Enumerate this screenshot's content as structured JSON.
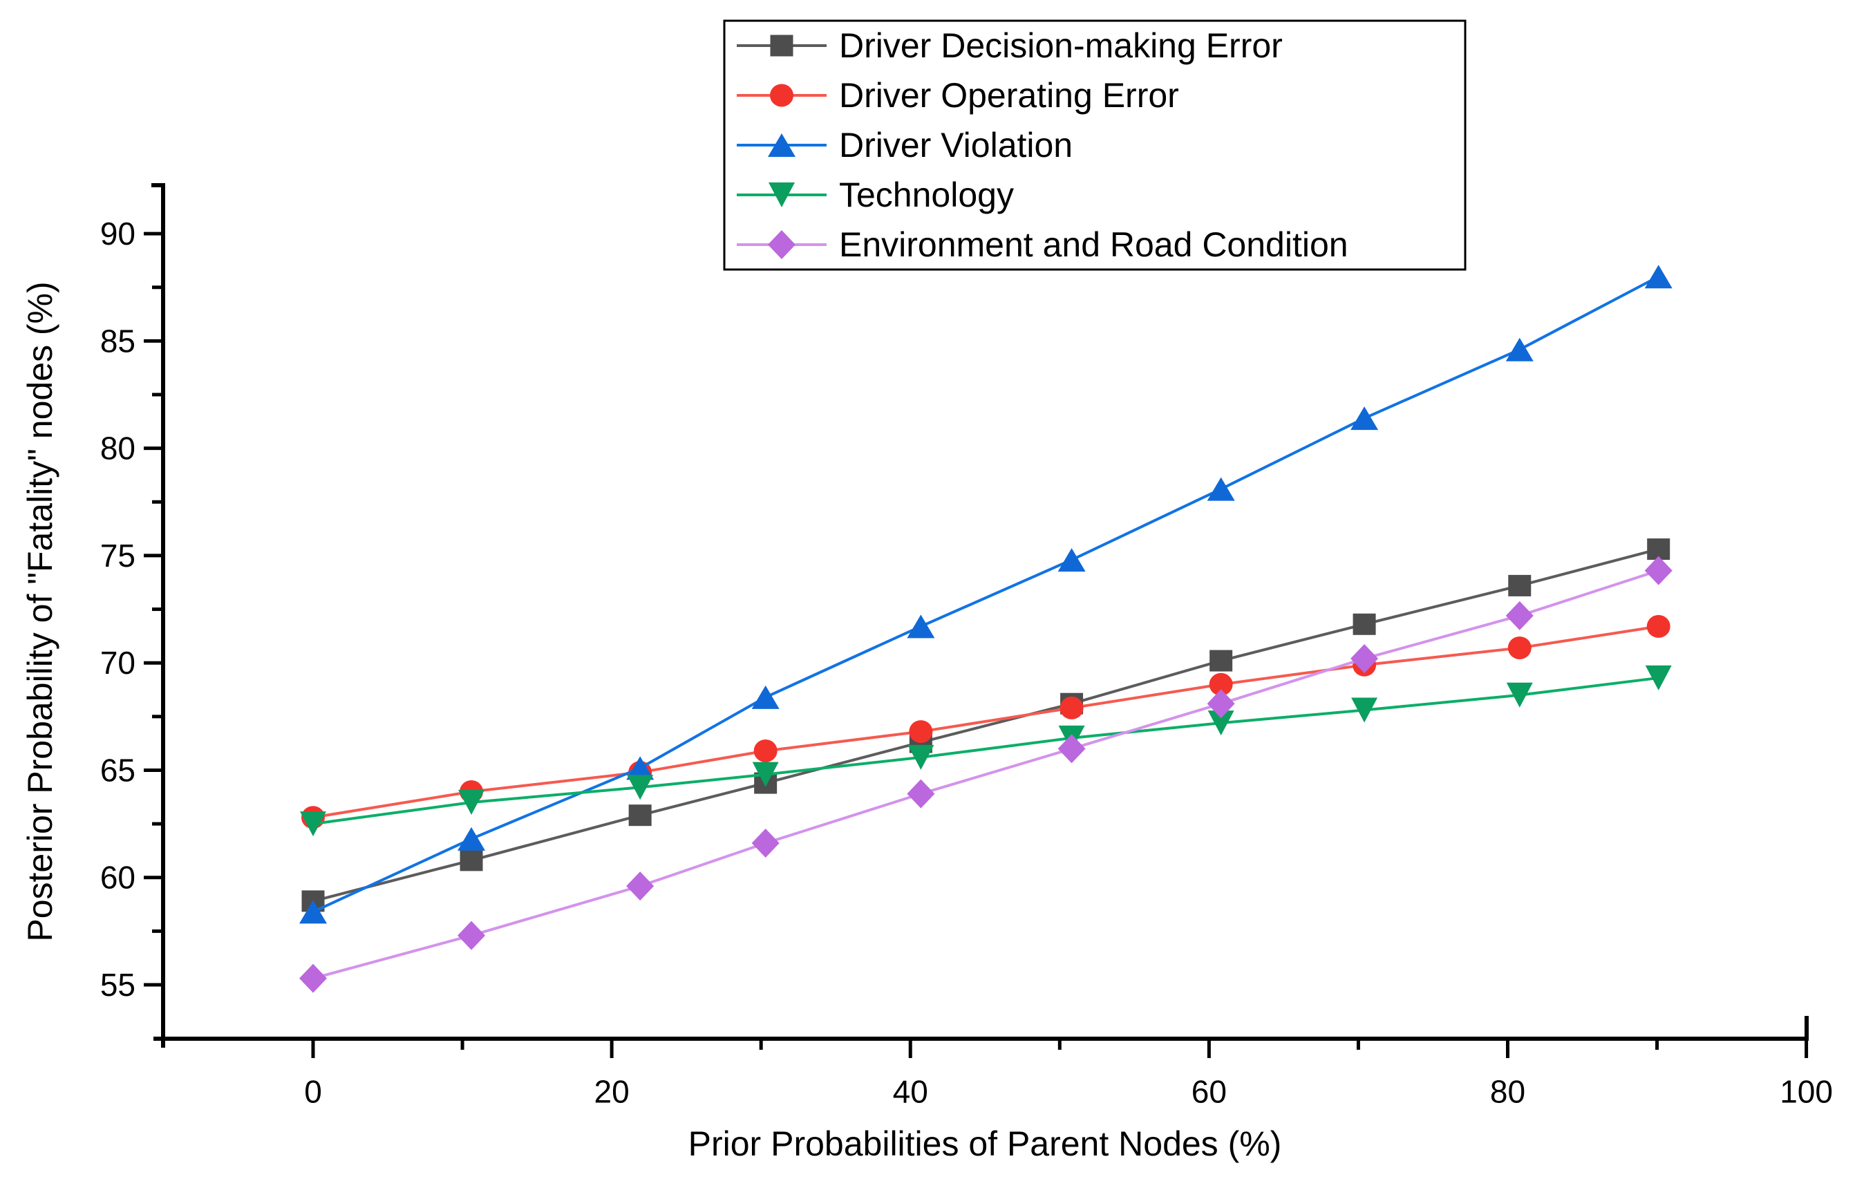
{
  "chart_data": {
    "type": "line",
    "title": "",
    "xlabel": "Prior Probabilities of Parent Nodes (%)",
    "ylabel": "Posterior Probability of \"Fatality\" nodes (%)",
    "xlim": [
      -10,
      100
    ],
    "ylim": [
      52.5,
      92.3
    ],
    "x_ticks": [
      0,
      20,
      40,
      60,
      80,
      100
    ],
    "x_minor_ticks": [
      10,
      30,
      50,
      70,
      90
    ],
    "y_ticks": [
      55,
      60,
      65,
      70,
      75,
      80,
      85,
      90
    ],
    "y_minor_ticks": [
      57.5,
      62.5,
      67.5,
      72.5,
      77.5,
      82.5,
      87.5
    ],
    "grid": false,
    "legend_position": "top-center",
    "x": [
      0,
      10.6,
      21.9,
      30.3,
      40.7,
      50.8,
      60.8,
      70.4,
      80.8,
      90.1
    ],
    "series": [
      {
        "name": "Driver Decision-making Error",
        "marker": "square",
        "color": "#4d4d4d",
        "line_color": "#5c5c5c",
        "values": [
          58.9,
          60.8,
          62.9,
          64.4,
          66.3,
          68.1,
          70.1,
          71.8,
          73.6,
          75.3
        ]
      },
      {
        "name": "Driver Operating Error",
        "marker": "circle",
        "color": "#f2332c",
        "line_color": "#f55a50",
        "values": [
          62.8,
          64.0,
          64.9,
          65.9,
          66.8,
          67.9,
          69.0,
          69.9,
          70.7,
          71.7
        ]
      },
      {
        "name": "Driver Violation",
        "marker": "triangle-up",
        "color": "#0f68d6",
        "line_color": "#1173e3",
        "values": [
          58.4,
          61.8,
          65.1,
          68.4,
          71.7,
          74.8,
          78.1,
          81.4,
          84.6,
          88.0
        ]
      },
      {
        "name": "Technology",
        "marker": "triangle-down",
        "color": "#0b9e5e",
        "line_color": "#0cae68",
        "values": [
          62.5,
          63.5,
          64.2,
          64.8,
          65.6,
          66.5,
          67.2,
          67.8,
          68.5,
          69.3
        ]
      },
      {
        "name": "Environment and Road Condition",
        "marker": "diamond",
        "color": "#bb67de",
        "line_color": "#d393ec",
        "values": [
          55.3,
          57.3,
          59.6,
          61.6,
          63.9,
          66.0,
          68.1,
          70.2,
          72.2,
          74.3
        ]
      }
    ]
  }
}
